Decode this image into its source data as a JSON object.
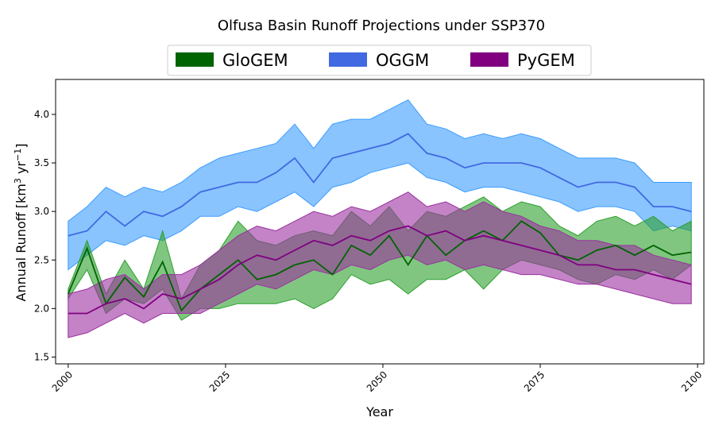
{
  "chart_data": {
    "type": "line",
    "title": "Olfusa Basin Runoff Projections under SSP370",
    "xlabel": "Year",
    "ylabel_main": "Annual Runoff [km",
    "ylabel_sup1": "3",
    "ylabel_mid": " yr",
    "ylabel_sup2": "−1",
    "ylabel_end": "]",
    "xlim": [
      1998,
      2101
    ],
    "ylim": [
      1.43,
      4.36
    ],
    "xticks": [
      2000,
      2025,
      2050,
      2075,
      2100
    ],
    "yticks": [
      1.5,
      2.0,
      2.5,
      3.0,
      3.5,
      4.0
    ],
    "ytick_labels": [
      "1.5",
      "2.0",
      "2.5",
      "3.0",
      "3.5",
      "4.0"
    ],
    "grid": false,
    "legend_position": "top-center",
    "x": [
      2000,
      2003,
      2006,
      2009,
      2012,
      2015,
      2018,
      2021,
      2024,
      2027,
      2030,
      2033,
      2036,
      2039,
      2042,
      2045,
      2048,
      2051,
      2054,
      2057,
      2060,
      2063,
      2066,
      2069,
      2072,
      2075,
      2078,
      2081,
      2084,
      2087,
      2090,
      2093,
      2096,
      2099
    ],
    "series": [
      {
        "name": "GloGEM",
        "line_color": "#006400",
        "band_color": "#2ca02c",
        "legend_color": "#006400",
        "mean": [
          2.15,
          2.62,
          2.05,
          2.32,
          2.12,
          2.48,
          1.98,
          2.2,
          2.35,
          2.5,
          2.3,
          2.35,
          2.45,
          2.5,
          2.35,
          2.65,
          2.55,
          2.75,
          2.45,
          2.75,
          2.55,
          2.7,
          2.8,
          2.7,
          2.9,
          2.78,
          2.55,
          2.5,
          2.6,
          2.65,
          2.55,
          2.65,
          2.55,
          2.58
        ],
        "lower": [
          2.1,
          2.4,
          1.95,
          2.1,
          2.05,
          2.2,
          1.88,
          2.0,
          2.0,
          2.05,
          2.05,
          2.05,
          2.1,
          2.0,
          2.1,
          2.35,
          2.25,
          2.3,
          2.15,
          2.3,
          2.3,
          2.4,
          2.2,
          2.4,
          2.5,
          2.45,
          2.4,
          2.3,
          2.25,
          2.35,
          2.3,
          2.4,
          2.3,
          2.45
        ],
        "upper": [
          2.2,
          2.7,
          2.15,
          2.5,
          2.2,
          2.8,
          2.1,
          2.45,
          2.6,
          2.9,
          2.7,
          2.65,
          2.75,
          2.8,
          2.75,
          3.0,
          2.85,
          3.05,
          2.8,
          3.0,
          2.95,
          3.05,
          3.15,
          3.0,
          3.1,
          3.05,
          2.85,
          2.75,
          2.9,
          2.95,
          2.85,
          2.95,
          2.8,
          2.9
        ]
      },
      {
        "name": "OGGM",
        "line_color": "#4169e1",
        "band_color": "#3b9cff",
        "legend_color": "#4169e1",
        "mean": [
          2.75,
          2.8,
          3.0,
          2.85,
          3.0,
          2.95,
          3.05,
          3.2,
          3.25,
          3.3,
          3.3,
          3.4,
          3.55,
          3.3,
          3.55,
          3.6,
          3.65,
          3.7,
          3.8,
          3.6,
          3.55,
          3.45,
          3.5,
          3.5,
          3.5,
          3.45,
          3.35,
          3.25,
          3.3,
          3.3,
          3.25,
          3.05,
          3.05,
          3.0
        ],
        "lower": [
          2.4,
          2.55,
          2.7,
          2.65,
          2.75,
          2.7,
          2.8,
          2.95,
          2.95,
          3.05,
          3.0,
          3.1,
          3.2,
          3.05,
          3.25,
          3.3,
          3.4,
          3.45,
          3.5,
          3.35,
          3.3,
          3.2,
          3.25,
          3.25,
          3.2,
          3.15,
          3.1,
          3.0,
          3.05,
          3.05,
          3.0,
          2.8,
          2.85,
          2.8
        ],
        "upper": [
          2.9,
          3.05,
          3.25,
          3.15,
          3.25,
          3.2,
          3.3,
          3.45,
          3.55,
          3.6,
          3.65,
          3.7,
          3.9,
          3.65,
          3.9,
          3.95,
          3.95,
          4.05,
          4.15,
          3.9,
          3.85,
          3.75,
          3.8,
          3.75,
          3.8,
          3.75,
          3.65,
          3.55,
          3.55,
          3.55,
          3.5,
          3.3,
          3.3,
          3.3
        ]
      },
      {
        "name": "PyGEM",
        "line_color": "#800080",
        "band_color": "#9b30a0",
        "legend_color": "#800080",
        "mean": [
          1.95,
          1.95,
          2.05,
          2.1,
          2.0,
          2.15,
          2.1,
          2.2,
          2.3,
          2.45,
          2.55,
          2.5,
          2.6,
          2.7,
          2.65,
          2.75,
          2.7,
          2.8,
          2.85,
          2.75,
          2.8,
          2.7,
          2.75,
          2.7,
          2.65,
          2.6,
          2.55,
          2.45,
          2.45,
          2.4,
          2.4,
          2.35,
          2.3,
          2.25
        ],
        "lower": [
          1.7,
          1.75,
          1.85,
          1.95,
          1.85,
          1.95,
          1.95,
          1.95,
          2.05,
          2.15,
          2.25,
          2.2,
          2.3,
          2.4,
          2.35,
          2.45,
          2.4,
          2.5,
          2.55,
          2.45,
          2.5,
          2.4,
          2.45,
          2.4,
          2.35,
          2.35,
          2.3,
          2.25,
          2.25,
          2.2,
          2.15,
          2.1,
          2.05,
          2.05
        ],
        "upper": [
          2.15,
          2.2,
          2.3,
          2.35,
          2.2,
          2.35,
          2.35,
          2.45,
          2.6,
          2.75,
          2.85,
          2.8,
          2.9,
          3.0,
          2.95,
          3.05,
          3.0,
          3.1,
          3.2,
          3.05,
          3.1,
          3.0,
          3.1,
          3.0,
          2.95,
          2.85,
          2.8,
          2.7,
          2.7,
          2.65,
          2.65,
          2.55,
          2.5,
          2.45
        ]
      }
    ]
  }
}
